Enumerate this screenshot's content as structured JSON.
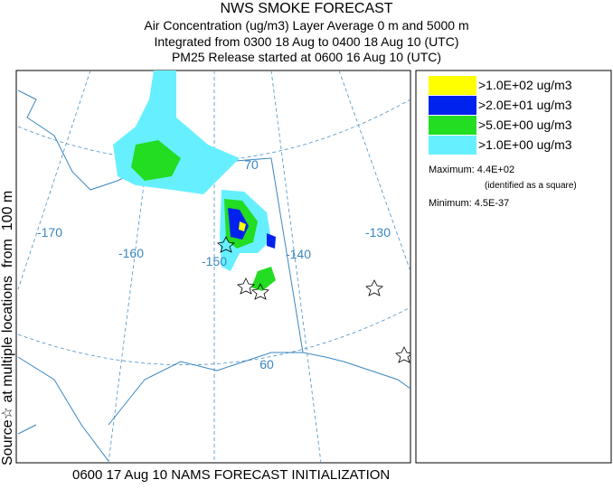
{
  "header": {
    "title": "NWS SMOKE FORECAST",
    "lines": [
      "Air Concentration (ug/m3) Layer Average    0 m and  5000 m",
      "Integrated from 0300 18 Aug to 0400 18 Aug 10 (UTC)",
      "PM25 Release started at 0600 16 Aug 10 (UTC)"
    ]
  },
  "side_label": "Source☆ at multiple locations  from  100 m",
  "map": {
    "lon_labels": [
      "-170",
      "-160",
      "-150",
      "-140",
      "-130"
    ],
    "lat_labels": [
      "70",
      "60"
    ]
  },
  "legend": {
    "items": [
      {
        "label": ">1.0E+02 ug/m3",
        "color": "#ffff00"
      },
      {
        "label": ">2.0E+01 ug/m3",
        "color": "#0022ee"
      },
      {
        "label": ">5.0E+00 ug/m3",
        "color": "#22dd22"
      },
      {
        "label": ">1.0E+00 ug/m3",
        "color": "#66f0ff"
      }
    ],
    "maximum": "Maximum: 4.4E+02",
    "maximum_note": "(identified as a square)",
    "minimum": "Minimum: 4.5E-37"
  },
  "footer": "0600 17 Aug 10 NAMS FORECAST INITIALIZATION"
}
